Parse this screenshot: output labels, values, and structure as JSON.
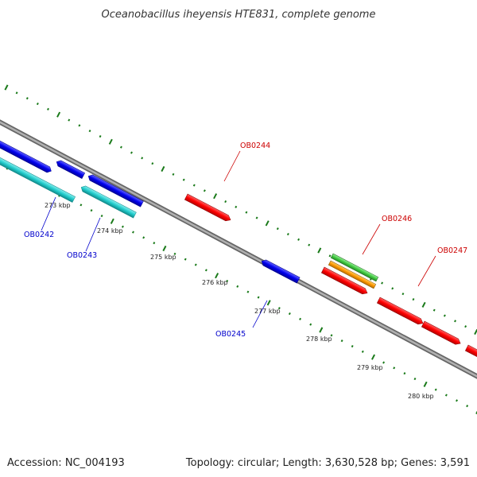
{
  "title": "Oceanobacillus iheyensis HTE831, complete genome",
  "footer": {
    "accession": "Accession: NC_004193",
    "summary": "Topology: circular; Length: 3,630,528 bp; Genes: 3,591"
  },
  "colors": {
    "backbone": "#8a8a8a",
    "ticks": "#1a7a1a",
    "label_forward": "#cc0000",
    "label_reverse": "#0000cc",
    "gene_red": "#ff0000",
    "gene_blue": "#0000ee",
    "gene_cyan": "#22cccc",
    "gene_green": "#44cc44",
    "gene_orange": "#ff9900"
  },
  "kbp_labels": [
    "273 kbp",
    "274 kbp",
    "275 kbp",
    "276 kbp",
    "277 kbp",
    "278 kbp",
    "279 kbp",
    "280 kbp"
  ],
  "genes": [
    {
      "label": "OB0242",
      "color": "gene_blue",
      "strand": "reverse"
    },
    {
      "label": "OB0243",
      "color": "gene_blue",
      "strand": "reverse"
    },
    {
      "label": "OB0244",
      "color": "gene_red",
      "strand": "forward"
    },
    {
      "label": "OB0245",
      "color": "gene_blue",
      "strand": "reverse"
    },
    {
      "label": "OB0246",
      "color": "gene_green",
      "strand": "forward"
    },
    {
      "label": "OB0247",
      "color": "gene_red",
      "strand": "forward"
    }
  ]
}
